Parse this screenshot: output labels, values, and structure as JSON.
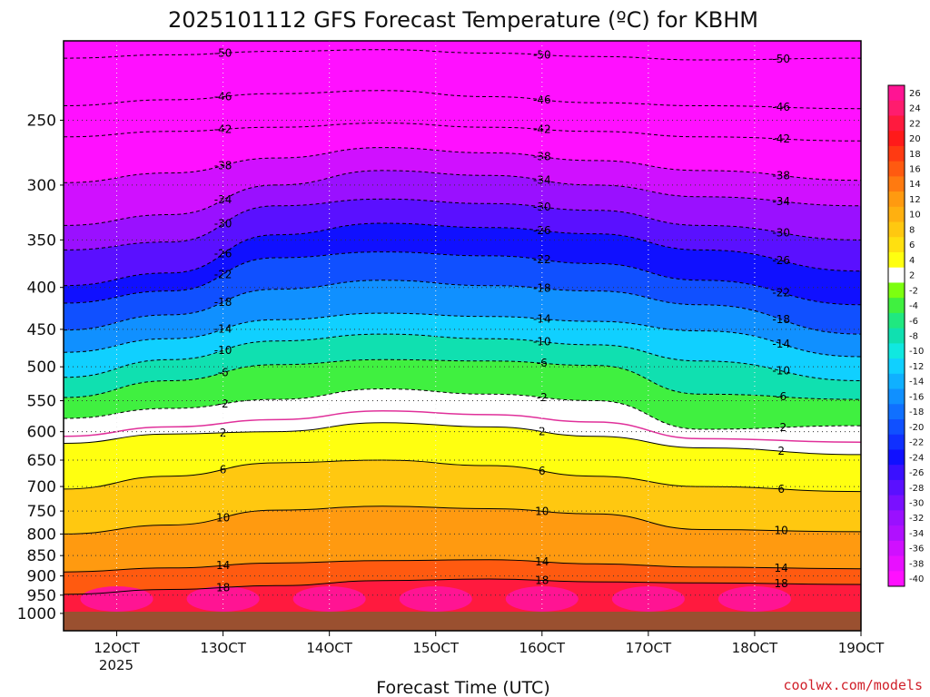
{
  "chart_data": {
    "type": "heatmap",
    "title": "2025101112 GFS Forecast Temperature (ºC) for KBHM",
    "xlabel": "Forecast Time (UTC)",
    "credit": "coolwx.com/models",
    "x_ticks": [
      "12OCT",
      "13OCT",
      "14OCT",
      "15OCT",
      "16OCT",
      "17OCT",
      "18OCT",
      "19OCT"
    ],
    "x_sub_label": "2025",
    "y_ticks": [
      250,
      300,
      350,
      400,
      450,
      500,
      550,
      600,
      650,
      700,
      750,
      800,
      850,
      900,
      950,
      1000
    ],
    "ylim": [
      1050,
      200
    ],
    "xlim": [
      11.5,
      19.0
    ],
    "colorbar_labels": [
      26,
      24,
      22,
      20,
      18,
      16,
      14,
      12,
      10,
      8,
      6,
      4,
      2,
      -2,
      -4,
      -6,
      -8,
      -10,
      -12,
      -14,
      -16,
      -18,
      -20,
      -22,
      -24,
      -26,
      -28,
      -30,
      -32,
      -34,
      -36,
      -38,
      -40
    ],
    "colorbar_colors": [
      "#ff1493",
      "#ff1c6e",
      "#ff1a3e",
      "#ff1a1a",
      "#ff3a12",
      "#ff5a10",
      "#ff7a10",
      "#ff9a10",
      "#ffb010",
      "#ffc810",
      "#ffe010",
      "#ffff10",
      "#ffffff",
      "#7cff10",
      "#40f040",
      "#20e880",
      "#10e0b0",
      "#10e8e0",
      "#10d0ff",
      "#10b0ff",
      "#1090ff",
      "#1070ff",
      "#1050ff",
      "#1030ff",
      "#1010ff",
      "#3a10ff",
      "#5a10ff",
      "#7a10ff",
      "#9a10ff",
      "#b010ff",
      "#d010ff",
      "#e810ff",
      "#ff10ff"
    ],
    "surface_color": "#9a5030",
    "grid": true,
    "contour_levels": [
      {
        "value": -50,
        "p": [
          210,
          208,
          206,
          205,
          207,
          209,
          211,
          210
        ]
      },
      {
        "value": -46,
        "p": [
          240,
          236,
          232,
          230,
          234,
          238,
          240,
          242
        ]
      },
      {
        "value": -42,
        "p": [
          262,
          258,
          255,
          252,
          255,
          258,
          262,
          265
        ]
      },
      {
        "value": -38,
        "p": [
          298,
          290,
          278,
          270,
          274,
          280,
          288,
          296
        ]
      },
      {
        "value": -34,
        "p": [
          336,
          326,
          300,
          288,
          292,
          300,
          310,
          318
        ]
      },
      {
        "value": -30,
        "p": [
          360,
          352,
          318,
          312,
          316,
          322,
          336,
          350
        ]
      },
      {
        "value": -26,
        "p": [
          398,
          384,
          345,
          334,
          338,
          344,
          360,
          382
        ]
      },
      {
        "value": -22,
        "p": [
          418,
          404,
          368,
          362,
          366,
          374,
          392,
          420
        ]
      },
      {
        "value": -18,
        "p": [
          451,
          432,
          402,
          392,
          398,
          404,
          420,
          456
        ]
      },
      {
        "value": -14,
        "p": [
          480,
          462,
          438,
          430,
          434,
          440,
          452,
          486
        ]
      },
      {
        "value": -10,
        "p": [
          515,
          490,
          465,
          456,
          462,
          470,
          492,
          520
        ]
      },
      {
        "value": -6,
        "p": [
          545,
          520,
          497,
          490,
          492,
          498,
          540,
          548
        ]
      },
      {
        "value": -2,
        "p": [
          578,
          562,
          548,
          532,
          540,
          550,
          596,
          590
        ]
      },
      {
        "value": 2,
        "p": [
          620,
          604,
          600,
          585,
          592,
          608,
          628,
          640
        ]
      },
      {
        "value": 6,
        "p": [
          705,
          680,
          655,
          650,
          660,
          680,
          700,
          710
        ]
      },
      {
        "value": 10,
        "p": [
          800,
          780,
          748,
          740,
          745,
          756,
          790,
          795
        ]
      },
      {
        "value": 14,
        "p": [
          890,
          880,
          868,
          862,
          860,
          870,
          878,
          882
        ]
      },
      {
        "value": 18,
        "p": [
          948,
          935,
          925,
          912,
          908,
          915,
          918,
          922
        ]
      }
    ],
    "zero_line": {
      "value": 0,
      "color": "#e0309a",
      "p": [
        608,
        592,
        580,
        566,
        572,
        584,
        612,
        618
      ]
    }
  }
}
